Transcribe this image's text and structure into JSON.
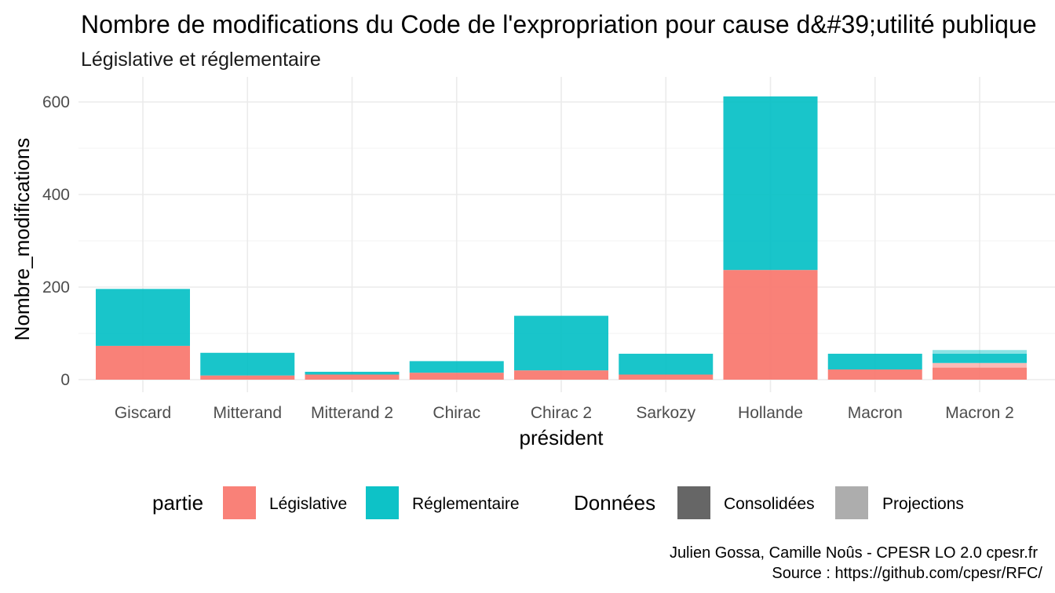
{
  "chart_data": {
    "type": "bar",
    "stacked": true,
    "title": "Nombre de modifications du Code de l'expropriation pour cause d&#39;utilité publique",
    "subtitle": "Législative et réglementaire",
    "xlabel": "président",
    "ylabel": "Nombre_modifications",
    "ylim": [
      0,
      640
    ],
    "yticks": [
      0,
      200,
      400,
      600
    ],
    "grid": true,
    "legend_position": "bottom",
    "categories": [
      "Giscard",
      "Mitterand",
      "Mitterand 2",
      "Chirac",
      "Chirac 2",
      "Sarkozy",
      "Hollande",
      "Macron",
      "Macron 2"
    ],
    "series": [
      {
        "name": "Législative",
        "color": "#F8766D",
        "consolidated": [
          73,
          9,
          11,
          15,
          20,
          11,
          237,
          22,
          26
        ],
        "projected": [
          0,
          0,
          0,
          0,
          0,
          0,
          0,
          0,
          10
        ]
      },
      {
        "name": "Réglementaire",
        "color": "#00BFC4",
        "consolidated": [
          123,
          49,
          6,
          25,
          118,
          45,
          375,
          34,
          20
        ],
        "projected": [
          0,
          0,
          0,
          0,
          0,
          0,
          0,
          0,
          8
        ]
      }
    ],
    "legends": [
      {
        "title": "partie",
        "items": [
          {
            "label": "Législative",
            "color": "#F8766D"
          },
          {
            "label": "Réglementaire",
            "color": "#00BFC4"
          }
        ]
      },
      {
        "title": "Données",
        "items": [
          {
            "label": "Consolidées",
            "color": "#666666"
          },
          {
            "label": "Projections",
            "color": "#ADADAD"
          }
        ]
      }
    ],
    "caption": [
      "Julien Gossa, Camille Noûs - CPESR LO 2.0 cpesr.fr",
      "Source : https://github.com/cpesr/RFC/"
    ]
  }
}
